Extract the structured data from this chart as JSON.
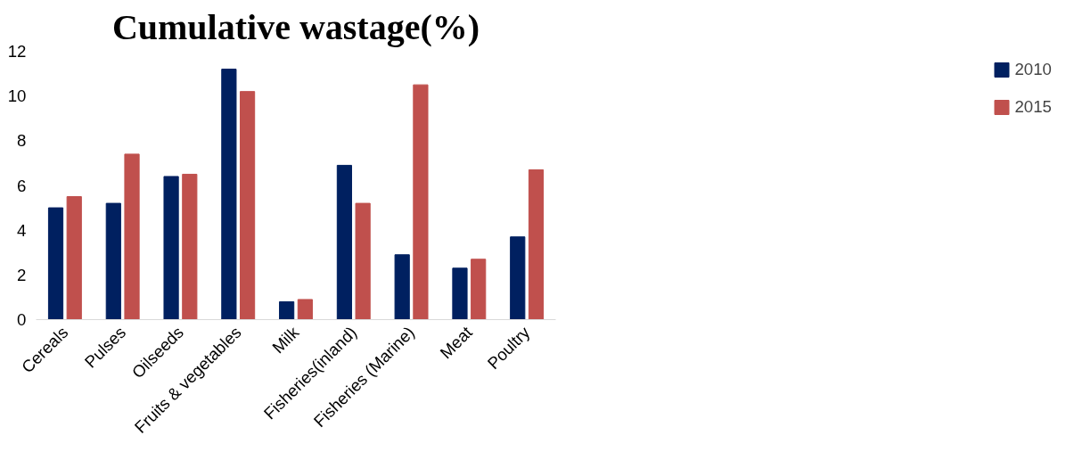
{
  "chart_data": {
    "type": "bar",
    "title": "Cumulative wastage(%)",
    "categories": [
      "Cereals",
      "Pulses",
      "Oilseeds",
      "Fruits & vegetables",
      "Milk",
      "Fisheries(inland)",
      "Fisheries (Marine)",
      "Meat",
      "Poultry"
    ],
    "series": [
      {
        "name": "2010",
        "color": "#002060",
        "values": [
          5.0,
          5.2,
          6.4,
          11.2,
          0.8,
          6.9,
          2.9,
          2.3,
          3.7
        ]
      },
      {
        "name": "2015",
        "color": "#c0504d",
        "values": [
          5.5,
          7.4,
          6.5,
          10.2,
          0.9,
          5.2,
          10.5,
          2.7,
          6.7
        ]
      }
    ],
    "ylim": [
      0,
      12
    ],
    "yticks": [
      0,
      2,
      4,
      6,
      8,
      10,
      12
    ],
    "grid": false,
    "legend": "right"
  }
}
